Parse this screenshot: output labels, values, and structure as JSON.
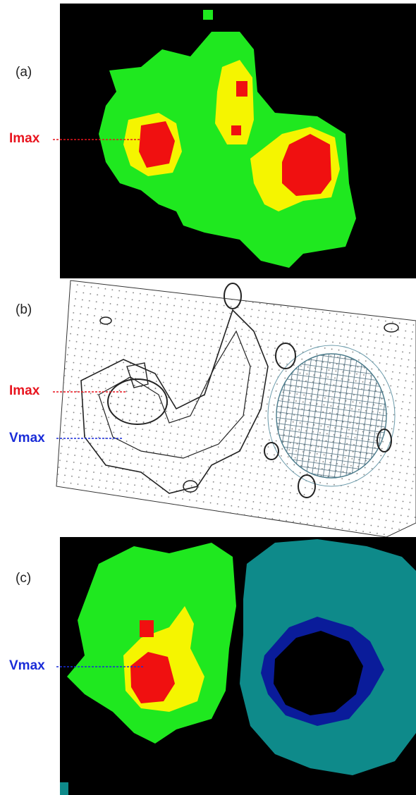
{
  "panels": [
    {
      "label": "(a)",
      "markers": [
        {
          "label": "Imax"
        }
      ]
    },
    {
      "label": "(b)",
      "markers": [
        {
          "label": "Imax"
        },
        {
          "label": "Vmax"
        }
      ]
    },
    {
      "label": "(c)",
      "markers": [
        {
          "label": "Vmax"
        }
      ]
    }
  ]
}
